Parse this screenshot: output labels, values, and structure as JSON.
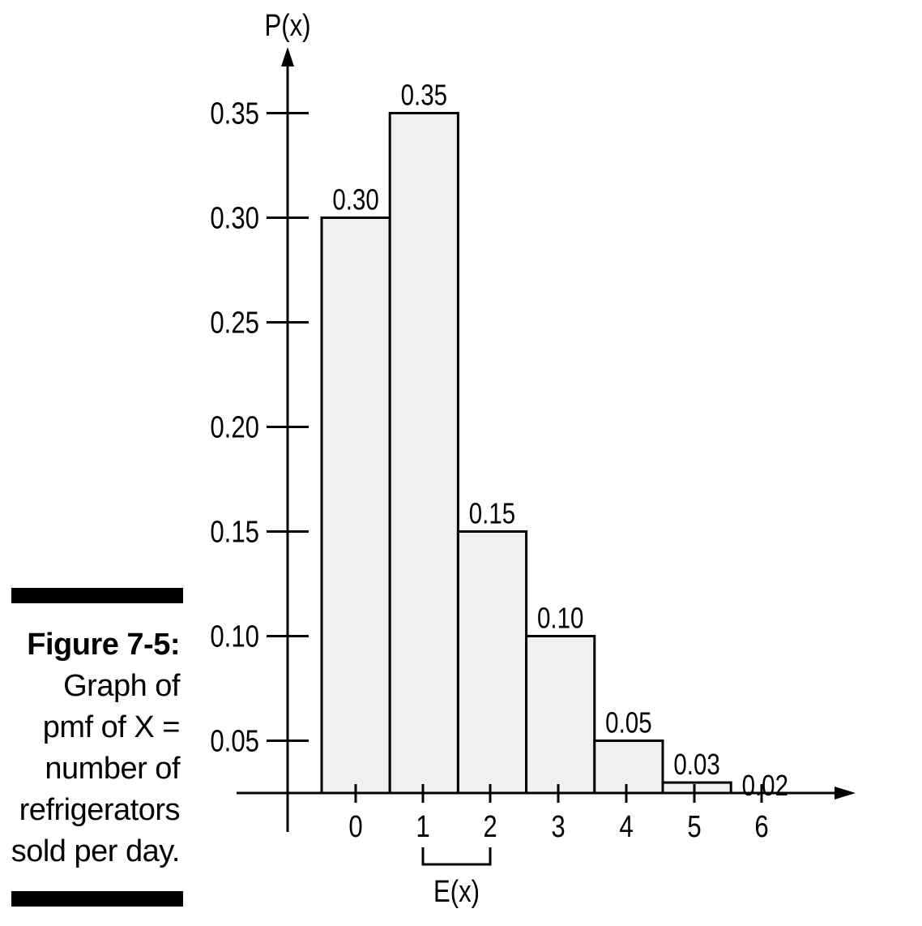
{
  "caption": {
    "figure_label": "Figure 7-5:",
    "lines": [
      "Graph of",
      "pmf of X =",
      "number of",
      "refrigerators",
      "sold per day."
    ]
  },
  "chart_data": {
    "type": "bar",
    "categories": [
      "0",
      "1",
      "2",
      "3",
      "4",
      "5",
      "6"
    ],
    "values": [
      0.3,
      0.35,
      0.15,
      0.1,
      0.05,
      0.03,
      0.02
    ],
    "value_labels": [
      "0.30",
      "0.35",
      "0.15",
      "0.10",
      "0.05",
      "0.03",
      "0.02"
    ],
    "ylabel": "P(x)",
    "yticks": [
      0.05,
      0.1,
      0.15,
      0.2,
      0.25,
      0.3,
      0.35
    ],
    "ytick_labels": [
      "0.05",
      "0.10",
      "0.15",
      "0.20",
      "0.25",
      "0.30",
      "0.35"
    ],
    "ylim": [
      0,
      0.38
    ],
    "bar_color": "#f0f0f0",
    "expected_value_bracket": {
      "label": "E(x)",
      "from": 1,
      "to": 2
    },
    "grid": false
  }
}
